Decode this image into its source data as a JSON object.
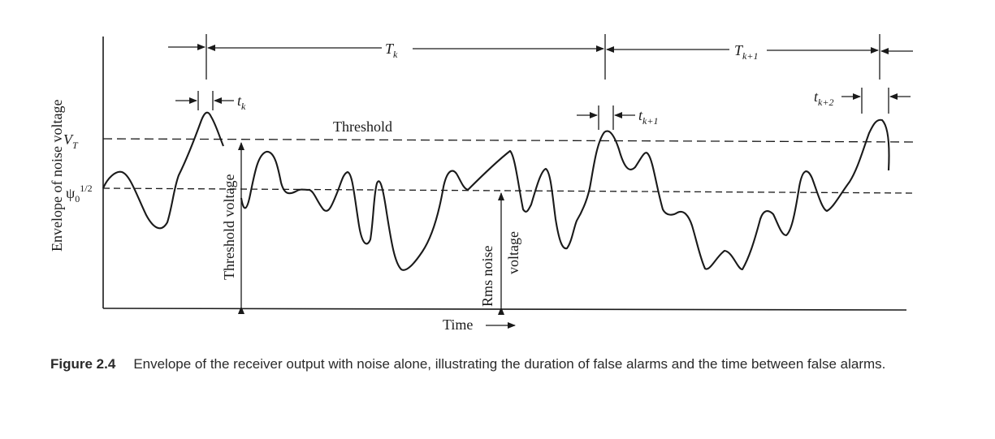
{
  "figure": {
    "y_axis_label": "Envelope of noise voltage",
    "x_axis_label": "Time",
    "threshold_label": "Threshold",
    "threshold_level_label": {
      "base": "V",
      "sub": "T"
    },
    "rms_level_label": {
      "base": "ψ",
      "sub": "0",
      "sup": "1/2"
    },
    "threshold_voltage_label": "Threshold voltage",
    "rms_noise_label_line1": "Rms noise",
    "rms_noise_label_line2": "voltage",
    "interval_labels": [
      {
        "base": "T",
        "sub": "k"
      },
      {
        "base": "T",
        "sub": "k+1"
      }
    ],
    "duration_labels": [
      {
        "base": "t",
        "sub": "k"
      },
      {
        "base": "t",
        "sub": "k+1"
      },
      {
        "base": "t",
        "sub": "k+2"
      }
    ]
  },
  "caption": {
    "label": "Figure 2.4",
    "text": "Envelope of the receiver output with noise alone, illustrating the duration of false alarms and the time between false alarms."
  }
}
